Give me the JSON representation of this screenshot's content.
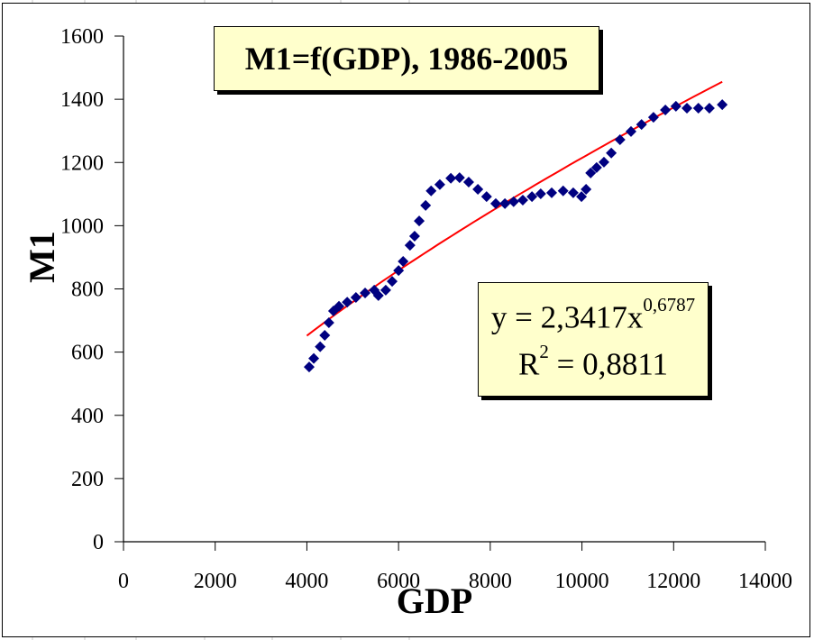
{
  "chart_data": {
    "type": "scatter",
    "title": "M1=f(GDP), 1986-2005",
    "xlabel": "GDP",
    "ylabel": "M1",
    "xlim": [
      0,
      14000
    ],
    "ylim": [
      0,
      1600
    ],
    "x_ticks": [
      0,
      2000,
      4000,
      6000,
      8000,
      10000,
      12000,
      14000
    ],
    "y_ticks": [
      0,
      200,
      400,
      600,
      800,
      1000,
      1200,
      1400,
      1600
    ],
    "x_tick_labels": [
      "0",
      "2000",
      "4000",
      "6000",
      "8000",
      "10000",
      "12000",
      "14000"
    ],
    "y_tick_labels": [
      "0",
      "200",
      "400",
      "600",
      "800",
      "1000",
      "1200",
      "1400",
      "1600"
    ],
    "grid": false,
    "legend": "none",
    "series": [
      {
        "name": "M1",
        "marker": "diamond",
        "color": "#000080",
        "x": [
          4050,
          4150,
          4290,
          4390,
          4480,
          4580,
          4700,
          4880,
          5070,
          5270,
          5470,
          5560,
          5720,
          5860,
          6000,
          6100,
          6250,
          6350,
          6450,
          6590,
          6710,
          6900,
          7140,
          7330,
          7530,
          7730,
          7920,
          8120,
          8320,
          8510,
          8710,
          8910,
          9100,
          9340,
          9590,
          9810,
          9990,
          10090,
          10190,
          10320,
          10480,
          10640,
          10830,
          11070,
          11300,
          11560,
          11820,
          12050,
          12290,
          12540,
          12780,
          13060
        ],
        "y": [
          553,
          580,
          617,
          653,
          693,
          730,
          745,
          758,
          773,
          787,
          796,
          779,
          796,
          824,
          858,
          887,
          938,
          967,
          1015,
          1064,
          1110,
          1130,
          1150,
          1152,
          1138,
          1115,
          1092,
          1070,
          1070,
          1076,
          1081,
          1092,
          1101,
          1104,
          1110,
          1104,
          1092,
          1115,
          1167,
          1184,
          1201,
          1230,
          1272,
          1298,
          1320,
          1343,
          1366,
          1378,
          1372,
          1372,
          1372,
          1383
        ]
      },
      {
        "name": "Power trendline",
        "type": "line",
        "color": "#ff0000",
        "function": "power",
        "coefficient": 2.3417,
        "exponent": 0.6787,
        "x_range": [
          4000,
          13060
        ]
      }
    ],
    "annotations": [
      {
        "equation_prefix": "y = 2,3417x",
        "equation_exponent": "0,6787"
      },
      {
        "r2_prefix": "R",
        "r2_exponent": "2",
        "r2_suffix": " = 0,8811"
      }
    ]
  },
  "annotations": {
    "eq_prefix": "y = 2,3417x",
    "eq_exp": "0,6787",
    "r2_prefix": "R",
    "r2_exp": "2",
    "r2_suffix": " = 0,8811"
  }
}
